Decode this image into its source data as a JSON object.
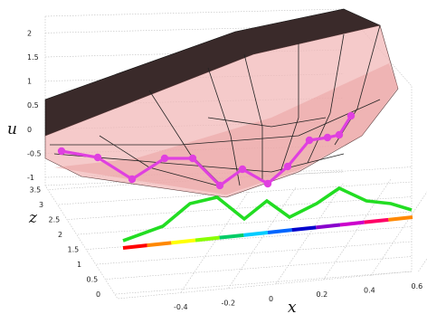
{
  "chart_data": {
    "type": "surface3d",
    "title": "",
    "xlabel": "x",
    "ylabel": "z",
    "zlabel": "u",
    "x_ticks": [
      "-0.4",
      "-0.2",
      "0",
      "0.2",
      "0.4",
      "0.6"
    ],
    "z_ticks": [
      "0",
      "0.5",
      "1",
      "1.5",
      "2",
      "2.5",
      "3",
      "3.5"
    ],
    "u_ticks": [
      "-1",
      "-0.5",
      "0",
      "0.5",
      "1",
      "1.5",
      "2"
    ],
    "xlim": [
      -0.6,
      0.6
    ],
    "zlim": [
      0,
      3.5
    ],
    "ulim": [
      -1,
      2
    ],
    "grid": true,
    "surfaces": [
      {
        "name": "",
        "color": "#3a2a2a",
        "x": [
          -0.6,
          0.6
        ],
        "u_at_back": [
          0.3,
          2.0
        ]
      },
      {
        "name": "",
        "color": "#f2b8b8",
        "x": [
          -0.6,
          0.6
        ],
        "u_at_back": [
          -0.4,
          1.2
        ]
      }
    ],
    "series": [
      {
        "name": "",
        "color": "#e040e0",
        "marker": "circle",
        "x": [
          -0.58,
          -0.45,
          -0.35,
          -0.22,
          -0.12,
          -0.02,
          0.08,
          0.18,
          0.28,
          0.38,
          0.46,
          0.55,
          0.62
        ],
        "u": [
          -0.45,
          -0.5,
          -0.85,
          -0.55,
          -0.6,
          -1.0,
          -0.8,
          -1.0,
          -0.7,
          -0.45,
          -0.4,
          -0.35,
          0.2
        ]
      },
      {
        "name": "",
        "color": "#22dd22",
        "x": [
          -0.5,
          -0.4,
          -0.32,
          -0.24,
          -0.15,
          -0.05,
          0.03,
          0.12,
          0.2,
          0.3,
          0.38,
          0.45
        ],
        "u": [
          -0.9,
          -0.6,
          -0.15,
          -0.1,
          -0.5,
          -0.25,
          -0.55,
          -0.3,
          -0.05,
          -0.3,
          -0.35,
          -0.45
        ]
      }
    ],
    "colorbar_line": {
      "colors": [
        "#ff0000",
        "#ff8800",
        "#ffff00",
        "#88ff00",
        "#00cc66",
        "#00ccff",
        "#0066ff",
        "#0000cc",
        "#8800cc",
        "#cc00cc",
        "#ff0066",
        "#ff8800"
      ]
    }
  }
}
